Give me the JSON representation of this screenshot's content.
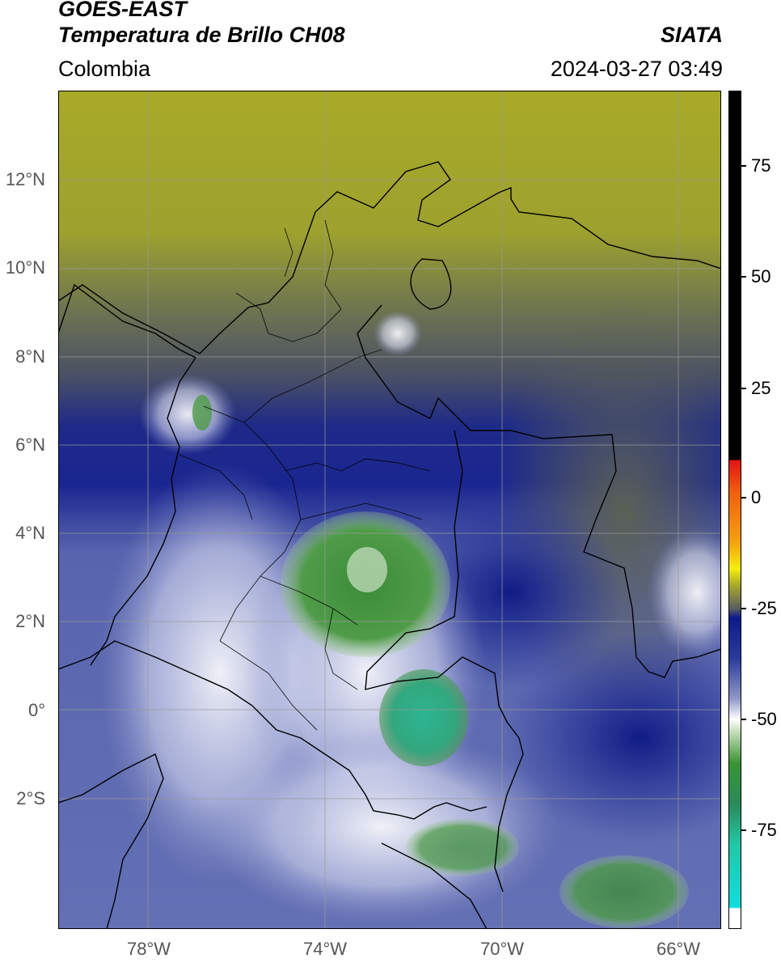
{
  "header": {
    "satellite": "GOES-EAST",
    "product": "Temperatura de Brillo CH08",
    "region": "Colombia",
    "agency": "SIATA",
    "datetime": "2024-03-27 03:49"
  },
  "map": {
    "lat_ticks": [
      "12°N",
      "10°N",
      "8°N",
      "6°N",
      "4°N",
      "2°N",
      "0°",
      "2°S"
    ],
    "lon_ticks": [
      "78°W",
      "74°W",
      "70°W",
      "66°W"
    ],
    "lat_range": [
      -5,
      14
    ],
    "lon_range": [
      -80,
      -65
    ]
  },
  "colorbar": {
    "labels": [
      "75",
      "50",
      "25",
      "0",
      "-25",
      "-50",
      "-75"
    ],
    "values": [
      75,
      50,
      25,
      0,
      -25,
      -50,
      -75
    ],
    "range": [
      -95,
      90
    ],
    "colors": {
      "warm": "#000000",
      "red": "#e0151a",
      "orange": "#f59a14",
      "yellow": "#f5ee10",
      "olive": "#a8a92b",
      "navy": "#0d1a8a",
      "white": "#ffffff",
      "green": "#3a9434",
      "teal": "#22c7a6",
      "cyan": "#10dddd"
    }
  }
}
